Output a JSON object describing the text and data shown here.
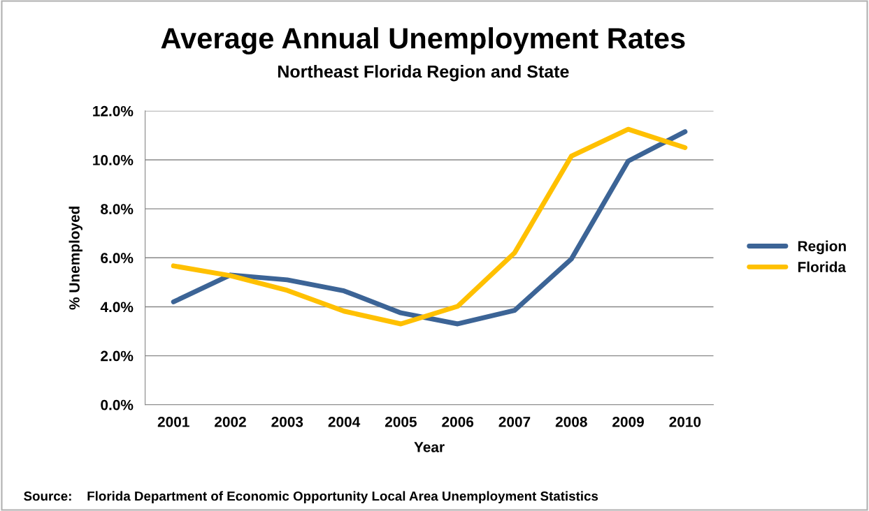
{
  "chart_data": {
    "type": "line",
    "title": "Average Annual Unemployment Rates",
    "subtitle": "Northeast Florida Region and State",
    "xlabel": "Year",
    "ylabel": "% Unemployed",
    "categories": [
      "2001",
      "2002",
      "2003",
      "2004",
      "2005",
      "2006",
      "2007",
      "2008",
      "2009",
      "2010"
    ],
    "series": [
      {
        "name": "Region",
        "color": "#3c6496",
        "values": [
          4.2,
          5.3,
          5.1,
          4.65,
          3.75,
          3.3,
          3.85,
          5.95,
          9.95,
          11.15
        ]
      },
      {
        "name": "Florida",
        "color": "#ffc000",
        "values": [
          5.67,
          5.27,
          4.67,
          3.82,
          3.3,
          4.02,
          6.2,
          10.15,
          11.25,
          10.5
        ]
      }
    ],
    "ylim": [
      0,
      12
    ],
    "yticks": [
      {
        "value": 0,
        "label": "0.0%"
      },
      {
        "value": 2,
        "label": "2.0%"
      },
      {
        "value": 4,
        "label": "4.0%"
      },
      {
        "value": 6,
        "label": "6.0%"
      },
      {
        "value": 8,
        "label": "8.0%"
      },
      {
        "value": 10,
        "label": "10.0%"
      },
      {
        "value": 12,
        "label": "12.0%"
      }
    ],
    "grid": "y",
    "legend": "right",
    "marker": "none",
    "line_style": "solid",
    "annotations": [
      "Source:    Florida Department of Economic Opportunity Local Area Unemployment Statistics"
    ]
  }
}
